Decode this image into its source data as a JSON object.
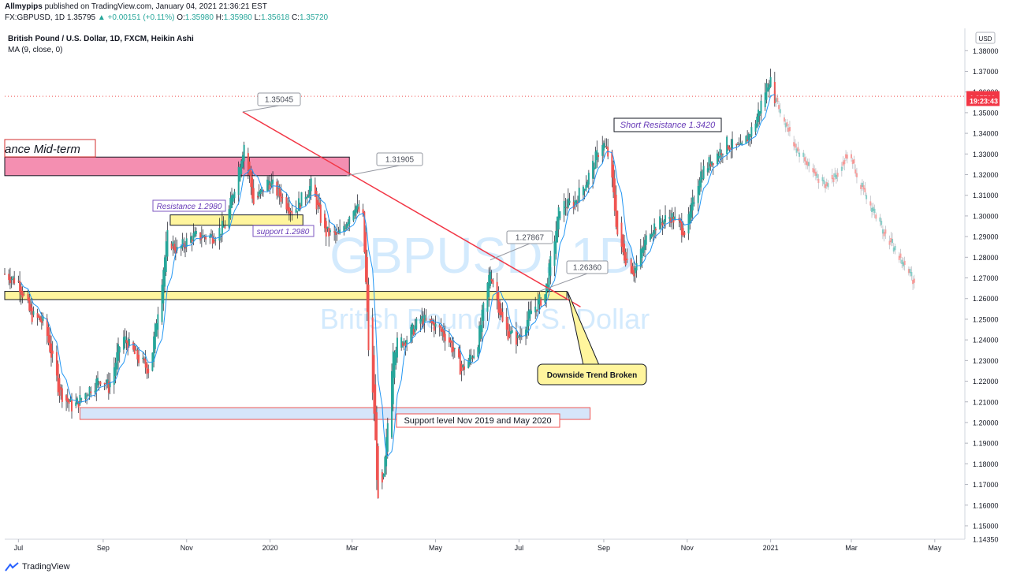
{
  "header": {
    "author": "Allmypips",
    "published": "published on TradingView.com, January 04, 2021 21:36:21 EST",
    "symbol": "FX:GBPUSD, 1D",
    "last": "1.35795",
    "change": "+0.00151 (+0.11%)",
    "ohlc_o_label": "O:",
    "ohlc_o": "1.35980",
    "ohlc_h_label": "H:",
    "ohlc_h": "1.35980",
    "ohlc_l_label": "L:",
    "ohlc_l": "1.35618",
    "ohlc_c_label": "C:",
    "ohlc_c": "1.35720"
  },
  "legend": {
    "title": "British Pound / U.S. Dollar, 1D, FXCM, Heikin Ashi",
    "indicator": "MA (9, close, 0)"
  },
  "footer": {
    "brand": "TradingView"
  },
  "colors": {
    "bull": "#26a69a",
    "bear": "#ef5350",
    "ma": "#2196f3",
    "trendline": "#f23645",
    "pink_zone": "#f48fb1",
    "yellow_zone": "#fff59d",
    "blue_zone": "#d6e6fa",
    "price_tag": "#f23645"
  },
  "chart_data": {
    "type": "candlestick",
    "watermark_symbol": "GBPUSD, 1D",
    "watermark_name": "British Pound / U.S. Dollar",
    "currency": "USD",
    "ylim": [
      1.1435,
      1.3908
    ],
    "y_ticks": [
      "1.38000",
      "1.37000",
      "1.36000",
      "1.35000",
      "1.34000",
      "1.33000",
      "1.32000",
      "1.31000",
      "1.30000",
      "1.29000",
      "1.28000",
      "1.27000",
      "1.26000",
      "1.25000",
      "1.24000",
      "1.23000",
      "1.22000",
      "1.21000",
      "1.20000",
      "1.19000",
      "1.18000",
      "1.17000",
      "1.16000",
      "1.15000"
    ],
    "y_tick_values": [
      1.38,
      1.37,
      1.36,
      1.35,
      1.34,
      1.33,
      1.32,
      1.31,
      1.3,
      1.29,
      1.28,
      1.27,
      1.26,
      1.25,
      1.24,
      1.23,
      1.22,
      1.21,
      1.2,
      1.19,
      1.18,
      1.17,
      1.16,
      1.15
    ],
    "y_low_label": "1.14350",
    "y_low_value": 1.1435,
    "x_ticks": [
      "Jul",
      "Sep",
      "Nov",
      "2020",
      "Mar",
      "May",
      "Jul",
      "Sep",
      "Nov",
      "2021",
      "Mar",
      "May"
    ],
    "x_tick_dates": [
      "2019-07-01",
      "2019-09-01",
      "2019-11-01",
      "2020-01-01",
      "2020-03-01",
      "2020-05-01",
      "2020-07-01",
      "2020-09-01",
      "2020-11-01",
      "2021-01-01",
      "2021-03-01",
      "2021-05-01"
    ],
    "x_range": [
      "2019-06-21",
      "2021-05-23"
    ],
    "price_tags": [
      {
        "label": "1.35795",
        "value": 1.35795
      },
      {
        "label": "1.35720",
        "value": 1.3572
      },
      {
        "label": "19:23:43",
        "value": 1.3557
      }
    ],
    "current_price": 1.35795,
    "close_path": [
      [
        "2019-06-21",
        1.272
      ],
      [
        "2019-07-01",
        1.268
      ],
      [
        "2019-07-10",
        1.252
      ],
      [
        "2019-07-20",
        1.248
      ],
      [
        "2019-07-31",
        1.215
      ],
      [
        "2019-08-10",
        1.207
      ],
      [
        "2019-08-20",
        1.215
      ],
      [
        "2019-08-31",
        1.222
      ],
      [
        "2019-09-05",
        1.217
      ],
      [
        "2019-09-15",
        1.242
      ],
      [
        "2019-09-25",
        1.232
      ],
      [
        "2019-10-05",
        1.225
      ],
      [
        "2019-10-18",
        1.29
      ],
      [
        "2019-10-25",
        1.283
      ],
      [
        "2019-11-05",
        1.29
      ],
      [
        "2019-11-20",
        1.29
      ],
      [
        "2019-11-30",
        1.296
      ],
      [
        "2019-12-05",
        1.312
      ],
      [
        "2019-12-13",
        1.335
      ],
      [
        "2019-12-20",
        1.306
      ],
      [
        "2019-12-31",
        1.317
      ],
      [
        "2020-01-08",
        1.31
      ],
      [
        "2020-01-18",
        1.302
      ],
      [
        "2020-01-31",
        1.315
      ],
      [
        "2020-02-10",
        1.292
      ],
      [
        "2020-02-20",
        1.29
      ],
      [
        "2020-03-03",
        1.306
      ],
      [
        "2020-03-09",
        1.298
      ],
      [
        "2020-03-13",
        1.236
      ],
      [
        "2020-03-17",
        1.205
      ],
      [
        "2020-03-20",
        1.16
      ],
      [
        "2020-03-24",
        1.172
      ],
      [
        "2020-03-31",
        1.237
      ],
      [
        "2020-04-10",
        1.241
      ],
      [
        "2020-04-20",
        1.25
      ],
      [
        "2020-04-30",
        1.247
      ],
      [
        "2020-05-10",
        1.241
      ],
      [
        "2020-05-20",
        1.225
      ],
      [
        "2020-05-31",
        1.236
      ],
      [
        "2020-06-10",
        1.274
      ],
      [
        "2020-06-20",
        1.245
      ],
      [
        "2020-06-30",
        1.24
      ],
      [
        "2020-07-10",
        1.254
      ],
      [
        "2020-07-20",
        1.262
      ],
      [
        "2020-07-31",
        1.305
      ],
      [
        "2020-08-10",
        1.306
      ],
      [
        "2020-08-20",
        1.318
      ],
      [
        "2020-08-31",
        1.336
      ],
      [
        "2020-09-05",
        1.328
      ],
      [
        "2020-09-12",
        1.285
      ],
      [
        "2020-09-23",
        1.273
      ],
      [
        "2020-10-05",
        1.294
      ],
      [
        "2020-10-20",
        1.3
      ],
      [
        "2020-10-31",
        1.292
      ],
      [
        "2020-11-10",
        1.32
      ],
      [
        "2020-11-20",
        1.328
      ],
      [
        "2020-11-30",
        1.335
      ],
      [
        "2020-12-10",
        1.332
      ],
      [
        "2020-12-20",
        1.344
      ],
      [
        "2020-12-31",
        1.367
      ],
      [
        "2021-01-04",
        1.3579
      ]
    ],
    "projection_path": [
      [
        "2021-01-04",
        1.3579
      ],
      [
        "2021-01-20",
        1.333
      ],
      [
        "2021-02-10",
        1.314
      ],
      [
        "2021-02-20",
        1.322
      ],
      [
        "2021-02-28",
        1.331
      ],
      [
        "2021-03-10",
        1.312
      ],
      [
        "2021-03-25",
        1.293
      ],
      [
        "2021-04-10",
        1.275
      ],
      [
        "2021-04-18",
        1.267
      ]
    ],
    "zones": [
      {
        "type": "resistance_mid_term",
        "label": "ance Mid-term",
        "from": "2019-06-21",
        "to": "2020-02-28",
        "y_low": 1.3195,
        "y_high": 1.3285
      },
      {
        "type": "resistance",
        "label": "Resistance 1.2980",
        "from": "2019-10-20",
        "to": "2020-01-25",
        "y_low": 1.2955,
        "y_high": 1.3005
      },
      {
        "type": "support_trend_break",
        "from": "2019-06-21",
        "to": "2020-08-05",
        "y_low": 1.2595,
        "y_high": 1.2635
      },
      {
        "type": "support",
        "label": "Support level Nov 2019 and May 2020",
        "from": "2019-08-15",
        "to": "2020-08-22",
        "y_low": 1.2015,
        "y_high": 1.2072
      }
    ],
    "trendline": {
      "from": [
        "2019-12-12",
        1.3504
      ],
      "to": [
        "2020-08-15",
        1.256
      ]
    },
    "annotations": [
      {
        "text": "ance Mid-term",
        "kind": "zone-title"
      },
      {
        "text": "Resistance 1.2980",
        "kind": "zone-title"
      },
      {
        "text": "support 1.2980",
        "kind": "zone-title"
      },
      {
        "text": "Support level Nov 2019 and May 2020",
        "kind": "zone-title"
      },
      {
        "text": "Short Resistance 1.3420",
        "kind": "level-label"
      },
      {
        "text": "1.35045",
        "kind": "callout"
      },
      {
        "text": "1.31905",
        "kind": "callout"
      },
      {
        "text": "1.27867",
        "kind": "callout"
      },
      {
        "text": "1.26360",
        "kind": "callout"
      },
      {
        "text": "Downside Trend Broken",
        "kind": "callout"
      }
    ]
  }
}
